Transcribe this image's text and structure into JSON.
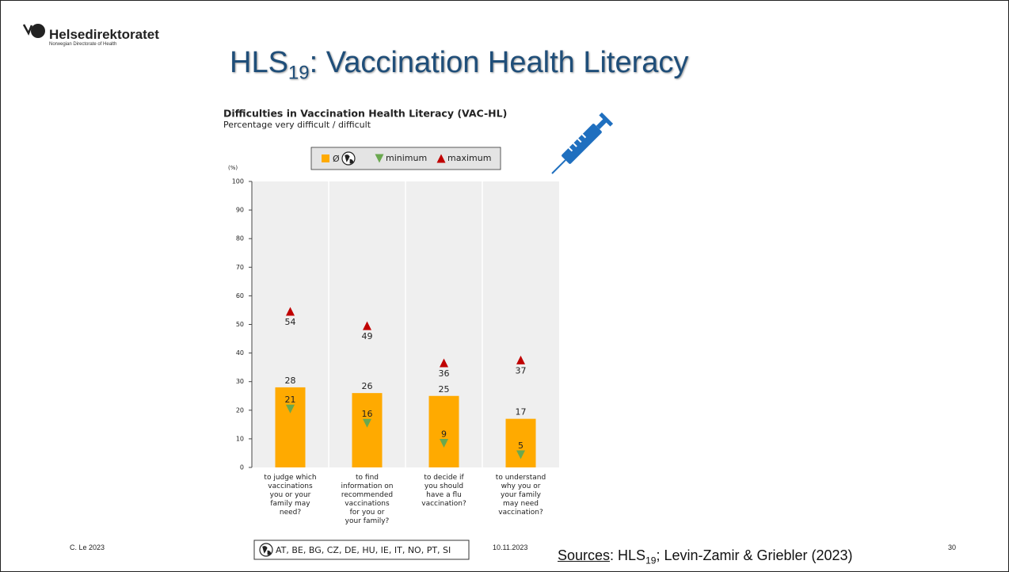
{
  "logo": {
    "name": "Helsedirektoratet",
    "subtitle": "Norwegian Directorate of Health"
  },
  "slide_title": {
    "main": "HLS",
    "sub": "19",
    "rest": ": Vaccination Health Literacy"
  },
  "footer": {
    "author": "C. Le 2023",
    "date": "10.11.2023",
    "page": "30",
    "sources": {
      "label": "Sources",
      "text1": ": HLS",
      "sub": "19",
      "text2": "; Levin-Zamir & Griebler (2023)"
    }
  },
  "chart_data": {
    "type": "bar",
    "title": "Difficulties in Vaccination Health Literacy (VAC-HL)",
    "subtitle": "Percentage very difficult / difficult",
    "y_unit": "(%)",
    "countries": "AT, BE, BG, CZ, DE, HU, IE, IT, NO, PT, SI",
    "categories": [
      "to judge which\nvaccinations\nyou or your\nfamily may\nneed?",
      "to find\ninformation on\nrecommended\nvaccinations\nfor you or\nyour family?",
      "to decide if\nyou should\nhave a flu\nvaccination?",
      "to understand\nwhy you or\nyour family\nmay need\nvaccination?"
    ],
    "series": [
      {
        "name": "Ø",
        "color": "#ffaa00",
        "marker": "bar",
        "values": [
          28,
          26,
          25,
          17
        ]
      },
      {
        "name": "minimum",
        "color": "#6aa84f",
        "marker": "triangle-down",
        "values": [
          21,
          16,
          9,
          5
        ]
      },
      {
        "name": "maximum",
        "color": "#c00000",
        "marker": "triangle-up",
        "values": [
          54,
          49,
          36,
          37
        ]
      }
    ],
    "ylim": [
      0,
      100
    ],
    "yticks": [
      0,
      10,
      20,
      30,
      40,
      50,
      60,
      70,
      80,
      90,
      100
    ],
    "grid": false
  }
}
